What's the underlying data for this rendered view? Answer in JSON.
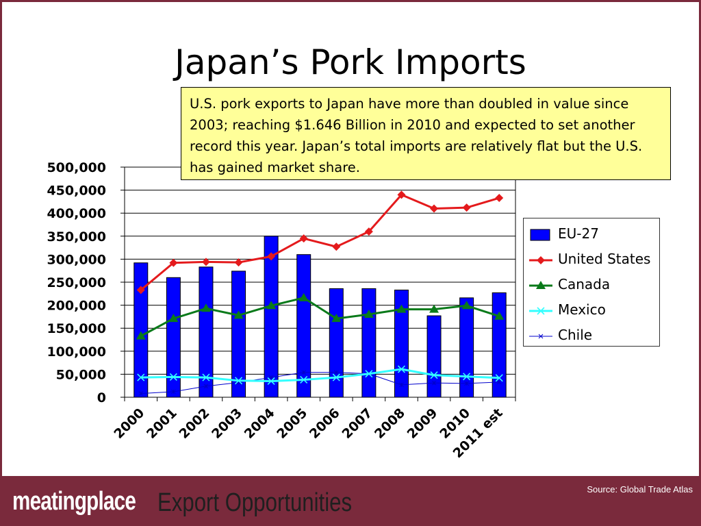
{
  "title": "Japan’s Pork Imports",
  "callout": "U.S. pork exports to Japan have more than doubled in value since 2003; reaching $1.646 Billion in 2010 and expected to set another record this year. Japan’s total imports are relatively flat but the U.S. has gained market share.",
  "footer": {
    "source": "Source: Global Trade Atlas",
    "logo": "meatingplace",
    "tagline": "Export Opportunities"
  },
  "chart_data": {
    "type": "bar",
    "title": "",
    "xlabel": "",
    "ylabel": "",
    "categories": [
      "2000",
      "2001",
      "2002",
      "2003",
      "2004",
      "2005",
      "2006",
      "2007",
      "2008",
      "2009",
      "2010",
      "2011 est"
    ],
    "ylim": [
      0,
      500000
    ],
    "yticks": [
      "0",
      "50,000",
      "100,000",
      "150,000",
      "200,000",
      "250,000",
      "300,000",
      "350,000",
      "400,000",
      "450,000",
      "500,000"
    ],
    "grid": true,
    "legend_position": "right",
    "series": [
      {
        "name": "EU-27",
        "kind": "bar",
        "color": "#0000ff",
        "values": [
          292000,
          260000,
          283000,
          274000,
          350000,
          310000,
          236000,
          236000,
          233000,
          177000,
          216000,
          227000
        ]
      },
      {
        "name": "United States",
        "kind": "line",
        "marker": "diamond",
        "color": "#e41a1c",
        "values": [
          233000,
          292000,
          294000,
          293000,
          306000,
          345000,
          327000,
          360000,
          440000,
          410000,
          412000,
          433000
        ]
      },
      {
        "name": "Canada",
        "kind": "line",
        "marker": "triangle",
        "color": "#0a7a1a",
        "values": [
          133000,
          171000,
          193000,
          178000,
          199000,
          216000,
          171000,
          180000,
          191000,
          191000,
          199000,
          176000
        ]
      },
      {
        "name": "Mexico",
        "kind": "line",
        "marker": "x",
        "color": "#33ffff",
        "values": [
          43000,
          44000,
          43000,
          36000,
          35000,
          38000,
          43000,
          51000,
          61000,
          48000,
          45000,
          42000
        ]
      },
      {
        "name": "Chile",
        "kind": "line",
        "marker": "star",
        "color": "#0000cc",
        "values": [
          8000,
          12000,
          24000,
          32000,
          43000,
          54000,
          54000,
          51000,
          27000,
          31000,
          30000,
          33000
        ]
      }
    ]
  }
}
